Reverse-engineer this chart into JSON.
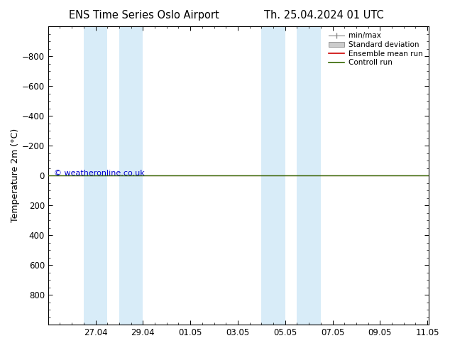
{
  "title_left": "ENS Time Series Oslo Airport",
  "title_right": "Th. 25.04.2024 01 UTC",
  "ylabel": "Temperature 2m (°C)",
  "watermark": "© weatheronline.co.uk",
  "ylim_top": -1000,
  "ylim_bottom": 1000,
  "yticks": [
    -800,
    -600,
    -400,
    -200,
    0,
    200,
    400,
    600,
    800
  ],
  "xlim": [
    0,
    16.05
  ],
  "xtick_labels": [
    "27.04",
    "29.04",
    "01.05",
    "03.05",
    "05.05",
    "07.05",
    "09.05",
    "11.05"
  ],
  "xtick_positions": [
    2,
    4,
    6,
    8,
    10,
    12,
    14,
    16
  ],
  "blue_bands": [
    [
      1.5,
      2.5
    ],
    [
      3.0,
      4.0
    ],
    [
      9.0,
      10.0
    ],
    [
      10.5,
      11.5
    ]
  ],
  "flat_line_y": 0,
  "green_line_color": "#336600",
  "red_line_color": "#cc0000",
  "bg_color": "#ffffff",
  "plot_bg_color": "#ffffff",
  "legend_entries": [
    "min/max",
    "Standard deviation",
    "Ensemble mean run",
    "Controll run"
  ],
  "blue_band_color": "#d8ecf8",
  "title_fontsize": 10.5,
  "tick_fontsize": 8.5,
  "label_fontsize": 9,
  "watermark_color": "#0000cc"
}
